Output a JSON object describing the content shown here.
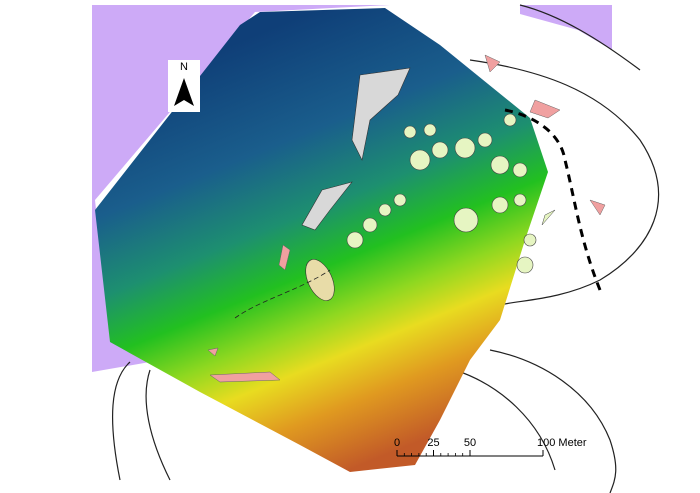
{
  "map": {
    "north_label": "N",
    "scale_bar": {
      "range": [
        0,
        100
      ],
      "ticks": [
        0,
        25,
        50,
        {
          "value": 100,
          "label": "100 Meter"
        }
      ]
    }
  }
}
